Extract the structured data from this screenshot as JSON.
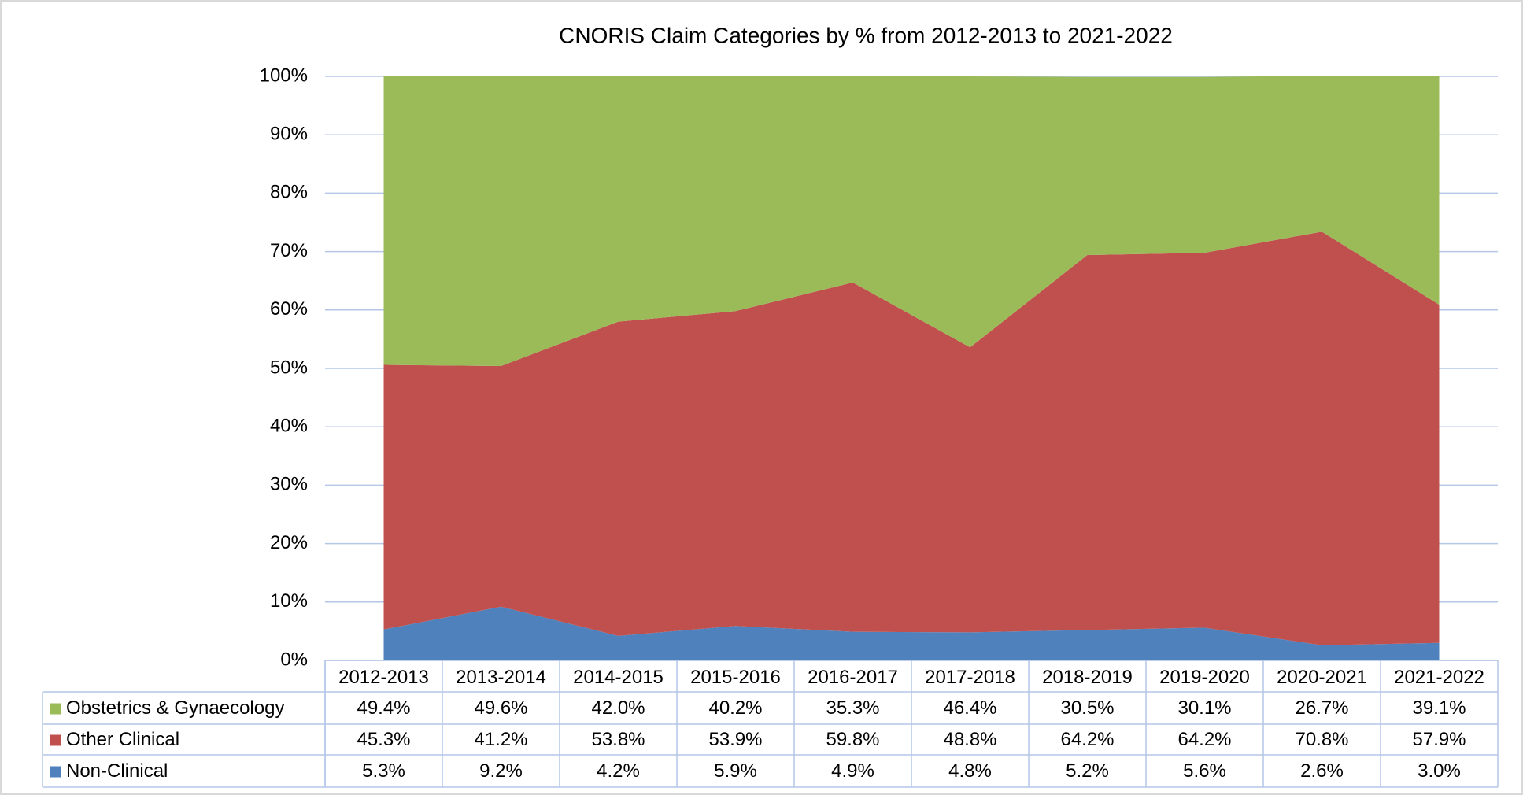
{
  "chart_data": {
    "type": "stacked_area",
    "title": "CNORIS Claim Categories by % from 2012-2013 to 2021-2022",
    "categories": [
      "2012-2013",
      "2013-2014",
      "2014-2015",
      "2015-2016",
      "2016-2017",
      "2017-2018",
      "2018-2019",
      "2019-2020",
      "2020-2021",
      "2021-2022"
    ],
    "series": [
      {
        "name": "Obstetrics & Gynaecology",
        "color": "#9bbb59",
        "values": [
          49.4,
          49.6,
          42.0,
          40.2,
          35.3,
          46.4,
          30.5,
          30.1,
          26.7,
          39.1
        ],
        "value_labels": [
          "49.4%",
          "49.6%",
          "42.0%",
          "40.2%",
          "35.3%",
          "46.4%",
          "30.5%",
          "30.1%",
          "26.7%",
          "39.1%"
        ]
      },
      {
        "name": "Other Clinical",
        "color": "#c0504d",
        "values": [
          45.3,
          41.2,
          53.8,
          53.9,
          59.8,
          48.8,
          64.2,
          64.2,
          70.8,
          57.9
        ],
        "value_labels": [
          "45.3%",
          "41.2%",
          "53.8%",
          "53.9%",
          "59.8%",
          "48.8%",
          "64.2%",
          "64.2%",
          "70.8%",
          "57.9%"
        ]
      },
      {
        "name": "Non-Clinical",
        "color": "#4f81bd",
        "values": [
          5.3,
          9.2,
          4.2,
          5.9,
          4.9,
          4.8,
          5.2,
          5.6,
          2.6,
          3.0
        ],
        "value_labels": [
          "5.3%",
          "9.2%",
          "4.2%",
          "5.9%",
          "4.9%",
          "4.8%",
          "5.2%",
          "5.6%",
          "2.6%",
          "3.0%"
        ]
      }
    ],
    "ylim": [
      0,
      100
    ],
    "yticks": [
      {
        "value": 0,
        "label": "0%"
      },
      {
        "value": 10,
        "label": "10%"
      },
      {
        "value": 20,
        "label": "20%"
      },
      {
        "value": 30,
        "label": "30%"
      },
      {
        "value": 40,
        "label": "40%"
      },
      {
        "value": 50,
        "label": "50%"
      },
      {
        "value": 60,
        "label": "60%"
      },
      {
        "value": 70,
        "label": "70%"
      },
      {
        "value": 80,
        "label": "80%"
      },
      {
        "value": 90,
        "label": "90%"
      },
      {
        "value": 100,
        "label": "100%"
      }
    ],
    "grid": true
  }
}
